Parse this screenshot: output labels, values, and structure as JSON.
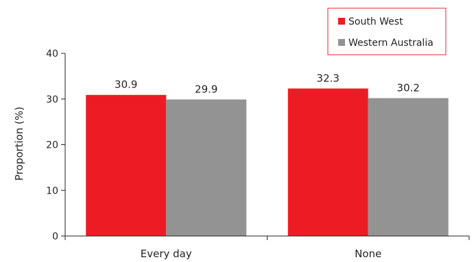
{
  "chart_data": {
    "type": "bar",
    "categories": [
      "Every day",
      "None"
    ],
    "series": [
      {
        "name": "South West",
        "values": [
          30.9,
          32.3
        ],
        "color": "#ed1c24"
      },
      {
        "name": "Western Australia",
        "values": [
          29.9,
          30.2
        ],
        "color": "#939393"
      }
    ],
    "xlabel": "",
    "ylabel": "Proportion (%)",
    "ylim": [
      0,
      40
    ],
    "yticks": [
      "0",
      "10",
      "20",
      "30",
      "40"
    ],
    "legend_position": "top-right",
    "legend_border_color": "#ed1c24",
    "grid": false
  }
}
